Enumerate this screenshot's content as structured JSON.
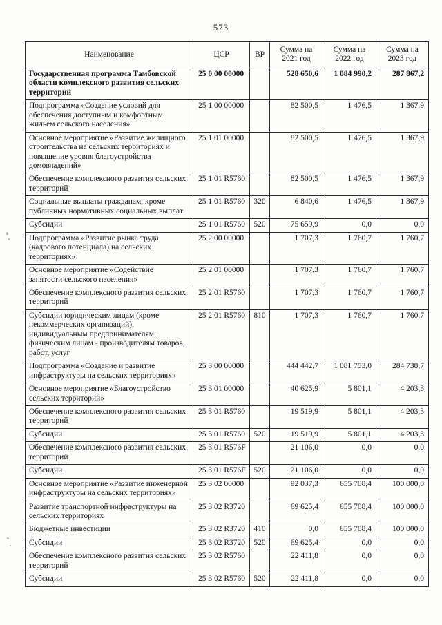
{
  "page": {
    "number": "573"
  },
  "table": {
    "columns": [
      "Наименование",
      "ЦСР",
      "ВР",
      "Сумма на 2021 год",
      "Сумма на 2022 год",
      "Сумма на 2023 год"
    ],
    "rows": [
      {
        "name": "Государственная программа Тамбовской области комплексного развития сельских территорий",
        "csr": "25 0 00 00000",
        "vr": "",
        "y2021": "528 650,6",
        "y2022": "1 084 990,2",
        "y2023": "287 867,2",
        "bold": true
      },
      {
        "name": "Подпрограмма «Создание условий для обеспечения доступным и комфортным жильем сельского населения»",
        "csr": "25 1 00 00000",
        "vr": "",
        "y2021": "82 500,5",
        "y2022": "1 476,5",
        "y2023": "1 367,9"
      },
      {
        "name": "Основное мероприятие «Развитие жилищного строительства на сельских территориях и повышение уровня благоустройства домовладений»",
        "csr": "25 1 01 00000",
        "vr": "",
        "y2021": "82 500,5",
        "y2022": "1 476,5",
        "y2023": "1 367,9"
      },
      {
        "name": "Обеспечение комплексного развития сельских территорий",
        "csr": "25 1 01 R5760",
        "vr": "",
        "y2021": "82 500,5",
        "y2022": "1 476,5",
        "y2023": "1 367,9"
      },
      {
        "name": "Социальные выплаты гражданам, кроме публичных нормативных социальных выплат",
        "csr": "25 1 01 R5760",
        "vr": "320",
        "y2021": "6 840,6",
        "y2022": "1 476,5",
        "y2023": "1 367,9"
      },
      {
        "name": "Субсидии",
        "csr": "25 1 01 R5760",
        "vr": "520",
        "y2021": "75 659,9",
        "y2022": "0,0",
        "y2023": "0,0"
      },
      {
        "name": "Подпрограмма «Развитие рынка труда (кадрового потенциала) на сельских территориях»",
        "csr": "25 2 00 00000",
        "vr": "",
        "y2021": "1 707,3",
        "y2022": "1 760,7",
        "y2023": "1 760,7"
      },
      {
        "name": "Основное мероприятие «Содействие занятости сельского населения»",
        "csr": "25 2 01 00000",
        "vr": "",
        "y2021": "1 707,3",
        "y2022": "1 760,7",
        "y2023": "1 760,7"
      },
      {
        "name": "Обеспечение комплексного развития сельских территорий",
        "csr": "25 2 01 R5760",
        "vr": "",
        "y2021": "1 707,3",
        "y2022": "1 760,7",
        "y2023": "1 760,7"
      },
      {
        "name": "Субсидии юридическим лицам (кроме некоммерческих организаций), индивидуальным предпринимателям, физическим лицам - производителям товаров, работ, услуг",
        "csr": "25 2 01 R5760",
        "vr": "810",
        "y2021": "1 707,3",
        "y2022": "1 760,7",
        "y2023": "1 760,7"
      },
      {
        "name": "Подпрограмма «Создание и развитие инфраструктуры на сельских территориях»",
        "csr": "25 3 00 00000",
        "vr": "",
        "y2021": "444 442,7",
        "y2022": "1 081 753,0",
        "y2023": "284 738,7"
      },
      {
        "name": "Основное мероприятие «Благоустройство сельских территорий»",
        "csr": "25 3 01 00000",
        "vr": "",
        "y2021": "40 625,9",
        "y2022": "5 801,1",
        "y2023": "4 203,3"
      },
      {
        "name": "Обеспечение комплексного развития сельских территорий",
        "csr": "25 3 01 R5760",
        "vr": "",
        "y2021": "19 519,9",
        "y2022": "5 801,1",
        "y2023": "4 203,3"
      },
      {
        "name": "Субсидии",
        "csr": "25 3 01 R5760",
        "vr": "520",
        "y2021": "19 519,9",
        "y2022": "5 801,1",
        "y2023": "4 203,3"
      },
      {
        "name": "Обеспечение комплексного развития сельских территорий",
        "csr": "25 3 01 R576F",
        "vr": "",
        "y2021": "21 106,0",
        "y2022": "0,0",
        "y2023": "0,0"
      },
      {
        "name": "Субсидии",
        "csr": "25 3 01 R576F",
        "vr": "520",
        "y2021": "21 106,0",
        "y2022": "0,0",
        "y2023": "0,0"
      },
      {
        "name": "Основное мероприятие «Развитие инженерной инфраструктуры на сельских территориях»",
        "csr": "25 3 02 00000",
        "vr": "",
        "y2021": "92 037,3",
        "y2022": "655 708,4",
        "y2023": "100 000,0"
      },
      {
        "name": "Развитие транспортной инфраструктуры на сельских территориях",
        "csr": "25 3 02 R3720",
        "vr": "",
        "y2021": "69 625,4",
        "y2022": "655 708,4",
        "y2023": "100 000,0"
      },
      {
        "name": "Бюджетные инвестиции",
        "csr": "25 3 02 R3720",
        "vr": "410",
        "y2021": "0,0",
        "y2022": "655 708,4",
        "y2023": "100 000,0"
      },
      {
        "name": "Субсидии",
        "csr": "25 3 02 R3720",
        "vr": "520",
        "y2021": "69 625,4",
        "y2022": "0,0",
        "y2023": "0,0"
      },
      {
        "name": "Обеспечение комплексного развития сельских территорий",
        "csr": "25 3 02 R5760",
        "vr": "",
        "y2021": "22 411,8",
        "y2022": "0,0",
        "y2023": "0,0"
      },
      {
        "name": "Субсидии",
        "csr": "25 3 02 R5760",
        "vr": "520",
        "y2021": "22 411,8",
        "y2022": "0,0",
        "y2023": "0,0"
      }
    ]
  }
}
